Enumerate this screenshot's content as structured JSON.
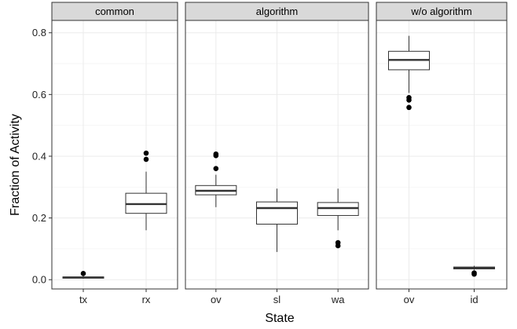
{
  "chart_data": {
    "type": "boxplot",
    "xlabel": "State",
    "ylabel": "Fraction of Activity",
    "ylim": [
      -0.03,
      0.84
    ],
    "y_ticks": [
      0.0,
      0.2,
      0.4,
      0.6,
      0.8
    ],
    "y_tick_labels": [
      "0.0",
      "0.2",
      "0.4",
      "0.6",
      "0.8"
    ],
    "grid": true,
    "background": "#ffffff",
    "grid_color": "#ebebeb",
    "strip_color": "#d9d9d9",
    "panels": [
      {
        "label": "common",
        "categories": [
          {
            "name": "tx",
            "min": 0.003,
            "q1": 0.005,
            "median": 0.007,
            "q3": 0.009,
            "max": 0.012,
            "outliers": [
              0.02
            ]
          },
          {
            "name": "rx",
            "min": 0.16,
            "q1": 0.215,
            "median": 0.245,
            "q3": 0.28,
            "max": 0.35,
            "outliers": [
              0.39,
              0.41
            ]
          }
        ]
      },
      {
        "label": "algorithm",
        "categories": [
          {
            "name": "ov",
            "min": 0.235,
            "q1": 0.275,
            "median": 0.288,
            "q3": 0.305,
            "max": 0.34,
            "outliers": [
              0.36,
              0.402,
              0.407
            ]
          },
          {
            "name": "sl",
            "min": 0.09,
            "q1": 0.18,
            "median": 0.232,
            "q3": 0.252,
            "max": 0.295,
            "outliers": []
          },
          {
            "name": "wa",
            "min": 0.16,
            "q1": 0.208,
            "median": 0.232,
            "q3": 0.25,
            "max": 0.295,
            "outliers": [
              0.11,
              0.12
            ]
          }
        ]
      },
      {
        "label": "w/o algorithm",
        "categories": [
          {
            "name": "ov",
            "min": 0.605,
            "q1": 0.68,
            "median": 0.712,
            "q3": 0.74,
            "max": 0.79,
            "outliers": [
              0.558,
              0.582,
              0.59
            ]
          },
          {
            "name": "id",
            "min": 0.032,
            "q1": 0.035,
            "median": 0.038,
            "q3": 0.041,
            "max": 0.045,
            "outliers": [
              0.018,
              0.022
            ]
          }
        ]
      }
    ]
  }
}
